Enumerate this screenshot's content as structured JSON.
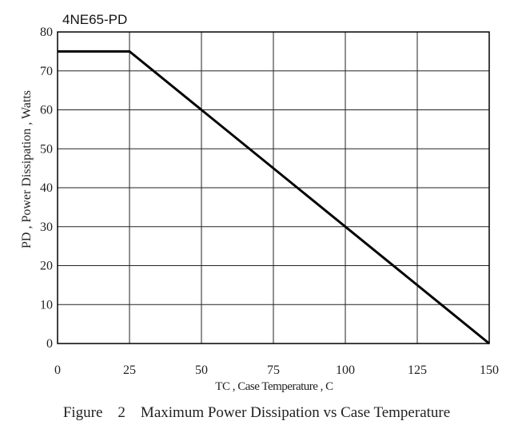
{
  "chart_data": {
    "type": "line",
    "title": "4NE65-PD",
    "xlabel": "TC , Case Temperature , C",
    "ylabel": "PD , Power Dissipation ,  Watts",
    "caption": "Figure    2    Maximum Power Dissipation vs Case Temperature",
    "xlim": [
      0,
      150
    ],
    "ylim": [
      0,
      80
    ],
    "x_ticks": [
      "0",
      "25",
      "50",
      "75",
      "100",
      "125",
      "150"
    ],
    "y_ticks": [
      "0",
      "10",
      "20",
      "30",
      "40",
      "50",
      "60",
      "70",
      "80"
    ],
    "grid": true,
    "series": [
      {
        "x": [
          0,
          25,
          150
        ],
        "y": [
          75,
          75,
          0
        ]
      }
    ],
    "colors": {
      "line": "#000000",
      "grid": "#222222",
      "frame": "#000000"
    }
  }
}
